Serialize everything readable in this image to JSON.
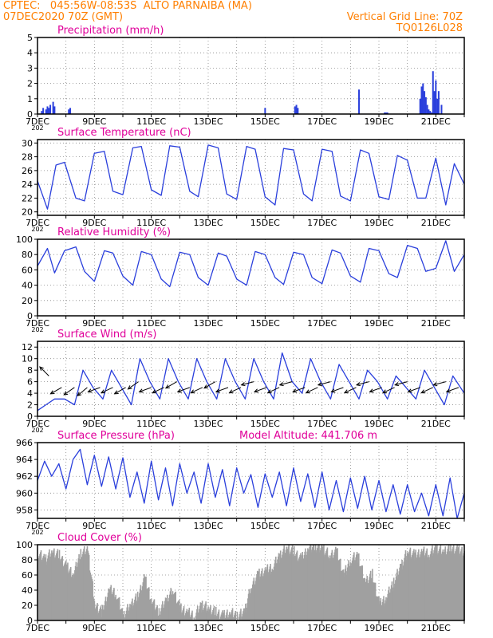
{
  "header": {
    "line1": "CPTEC:   045:56W-08:53S  ALTO PARNAIBA (MA)",
    "line2": "07DEC2020 70Z (GMT)",
    "grid_note": "Vertical Grid Line: 70Z",
    "code": "TQ0126L028"
  },
  "colors": {
    "header": "#ff7f00",
    "title": "#e0009a",
    "line": "#2a3fdc",
    "cloud": "#a0a0a0",
    "frame": "#000000",
    "grid": "#888888"
  },
  "chart_data": [
    {
      "type": "bar",
      "id": "precip",
      "title": "Precipitation (mm/h)",
      "title_extra": "",
      "ylim": [
        0,
        5
      ],
      "yticks": [
        0,
        1,
        2,
        3,
        4,
        5
      ],
      "ytick_labels": [
        "0",
        "1",
        "2",
        "3",
        "4",
        "5"
      ],
      "xlim": [
        7,
        22
      ],
      "xticks": [
        "7DEC",
        "9DEC",
        "11DEC",
        "13DEC",
        "15DEC",
        "17DEC",
        "19DEC",
        "21DEC"
      ],
      "x_below_first": "202",
      "x": [
        7.15,
        7.2,
        7.3,
        7.35,
        7.4,
        7.45,
        7.55,
        7.6,
        8.1,
        8.15,
        15.0,
        16.05,
        16.1,
        16.15,
        18.3,
        19.2,
        19.25,
        19.3,
        20.45,
        20.5,
        20.55,
        20.6,
        20.65,
        20.7,
        20.75,
        20.8,
        20.85,
        20.9,
        20.95,
        21.0,
        21.05,
        21.1,
        21.2
      ],
      "values": [
        0.2,
        0.4,
        0.3,
        0.5,
        0.4,
        0.6,
        0.8,
        0.5,
        0.3,
        0.4,
        0.4,
        0.5,
        0.6,
        0.4,
        1.6,
        0.1,
        0.1,
        0.1,
        1.0,
        1.8,
        2.0,
        1.5,
        1.1,
        0.6,
        0.3,
        0.2,
        0.1,
        2.8,
        1.5,
        2.2,
        1.0,
        1.5,
        0.6
      ]
    },
    {
      "type": "line",
      "id": "temp",
      "title": "Surface Temperature (nC)",
      "title_extra": "",
      "ylim": [
        19.5,
        30.5
      ],
      "yticks": [
        20,
        22,
        24,
        26,
        28,
        30
      ],
      "ytick_labels": [
        "20",
        "22",
        "24",
        "26",
        "28",
        "30"
      ],
      "xlim": [
        7,
        22
      ],
      "xticks": [
        "7DEC",
        "9DEC",
        "11DEC",
        "13DEC",
        "15DEC",
        "17DEC",
        "19DEC",
        "21DEC"
      ],
      "x_below_first": "202",
      "series": [
        {
          "x": [
            7,
            7.35,
            7.65,
            7.95,
            8.35,
            8.65,
            9.0,
            9.35,
            9.65,
            10.0,
            10.35,
            10.65,
            11.0,
            11.35,
            11.65,
            12.0,
            12.35,
            12.65,
            13.0,
            13.35,
            13.65,
            14.0,
            14.35,
            14.65,
            15.0,
            15.35,
            15.65,
            16.0,
            16.35,
            16.65,
            17.0,
            17.35,
            17.65,
            18.0,
            18.35,
            18.65,
            19.0,
            19.35,
            19.65,
            20.0,
            20.35,
            20.65,
            21.0,
            21.35,
            21.65,
            22.0
          ],
          "values": [
            24.5,
            20.4,
            26.8,
            27.2,
            22.0,
            21.6,
            28.5,
            28.8,
            23.0,
            22.5,
            29.3,
            29.5,
            23.2,
            22.4,
            29.6,
            29.4,
            23.0,
            22.2,
            29.7,
            29.3,
            22.6,
            21.8,
            29.5,
            29.1,
            22.2,
            21.0,
            29.2,
            29.0,
            22.6,
            21.6,
            29.1,
            28.8,
            22.3,
            21.6,
            29.0,
            28.5,
            22.2,
            21.8,
            28.2,
            27.5,
            22.0,
            22.0,
            27.8,
            21.0,
            27.0,
            24.0
          ]
        }
      ]
    },
    {
      "type": "line",
      "id": "rh",
      "title": "Relative Humidity (%)",
      "title_extra": "",
      "ylim": [
        0,
        100
      ],
      "yticks": [
        0,
        20,
        40,
        60,
        80,
        100
      ],
      "ytick_labels": [
        "0",
        "20",
        "40",
        "60",
        "80",
        "100"
      ],
      "xlim": [
        7,
        22
      ],
      "xticks": [
        "7DEC",
        "9DEC",
        "11DEC",
        "13DEC",
        "15DEC",
        "17DEC",
        "19DEC",
        "21DEC"
      ],
      "x_below_first": "202",
      "series": [
        {
          "x": [
            7,
            7.35,
            7.6,
            7.95,
            8.35,
            8.65,
            9.0,
            9.35,
            9.65,
            10.0,
            10.35,
            10.65,
            11.0,
            11.35,
            11.65,
            12.0,
            12.35,
            12.65,
            13.0,
            13.35,
            13.65,
            14.0,
            14.35,
            14.65,
            15.0,
            15.35,
            15.65,
            16.0,
            16.35,
            16.65,
            17.0,
            17.35,
            17.65,
            18.0,
            18.35,
            18.65,
            19.0,
            19.35,
            19.65,
            20.0,
            20.35,
            20.65,
            21.0,
            21.35,
            21.65,
            22.0
          ],
          "values": [
            65,
            88,
            56,
            85,
            90,
            58,
            45,
            85,
            82,
            52,
            40,
            84,
            80,
            48,
            38,
            83,
            80,
            50,
            40,
            82,
            78,
            48,
            40,
            84,
            80,
            50,
            41,
            83,
            80,
            50,
            42,
            86,
            82,
            52,
            44,
            88,
            85,
            55,
            50,
            92,
            88,
            58,
            62,
            98,
            58,
            80
          ]
        }
      ]
    },
    {
      "type": "line",
      "id": "wind",
      "title": "Surface Wind (m/s)",
      "title_extra": "",
      "ylim": [
        0,
        13
      ],
      "yticks": [
        0,
        2,
        4,
        6,
        8,
        10,
        12
      ],
      "ytick_labels": [
        "0",
        "2",
        "4",
        "6",
        "8",
        "10",
        "12"
      ],
      "xlim": [
        7,
        22
      ],
      "xticks": [
        "7DEC",
        "9DEC",
        "11DEC",
        "13DEC",
        "15DEC",
        "17DEC",
        "19DEC",
        "21DEC"
      ],
      "x_below_first": "202",
      "series": [
        {
          "x": [
            7,
            7.3,
            7.6,
            7.95,
            8.3,
            8.6,
            8.95,
            9.3,
            9.6,
            9.95,
            10.3,
            10.6,
            10.95,
            11.3,
            11.6,
            11.95,
            12.3,
            12.6,
            12.95,
            13.3,
            13.6,
            13.95,
            14.3,
            14.6,
            14.95,
            15.3,
            15.6,
            15.95,
            16.3,
            16.6,
            16.95,
            17.3,
            17.6,
            17.95,
            18.3,
            18.6,
            18.95,
            19.3,
            19.6,
            19.95,
            20.3,
            20.6,
            20.95,
            21.3,
            21.6,
            22.0
          ],
          "values": [
            1,
            2,
            3,
            3,
            2,
            8,
            5,
            3,
            8,
            5,
            2,
            10,
            6,
            3,
            10,
            6,
            3,
            10,
            6,
            3,
            10,
            6,
            3,
            10,
            6,
            3,
            11,
            6,
            4,
            10,
            6,
            3,
            9,
            6,
            3,
            8,
            6,
            3,
            7,
            5,
            3,
            8,
            5,
            2,
            7,
            4
          ]
        }
      ],
      "arrows": {
        "x": [
          7.4,
          7.85,
          8.3,
          8.75,
          9.2,
          9.65,
          10.1,
          10.55,
          11.0,
          11.45,
          11.9,
          12.35,
          12.8,
          13.25,
          13.7,
          14.15,
          14.6,
          15.05,
          15.5,
          15.95,
          16.4,
          16.85,
          17.3,
          17.75,
          18.2,
          18.65,
          19.1,
          19.55,
          20.0,
          20.45,
          20.9,
          21.35,
          21.8
        ],
        "y": [
          7,
          5,
          5,
          5,
          5,
          5,
          5,
          6,
          5,
          5,
          6,
          5,
          5,
          6,
          5,
          5,
          6,
          5,
          5,
          6,
          5,
          5,
          6,
          5,
          5,
          6,
          5,
          5,
          6,
          5,
          5,
          6,
          5
        ],
        "direction_deg": [
          135,
          210,
          215,
          220,
          200,
          205,
          210,
          215,
          200,
          205,
          210,
          200,
          205,
          210,
          200,
          205,
          195,
          200,
          205,
          195,
          200,
          205,
          195,
          200,
          205,
          195,
          200,
          205,
          195,
          200,
          205,
          195,
          200
        ]
      }
    },
    {
      "type": "line",
      "id": "press",
      "title": "Surface Pressure (hPa)",
      "title_extra": "Model Altitude: 441.706 m",
      "ylim": [
        957,
        966
      ],
      "yticks": [
        958,
        960,
        962,
        964,
        966
      ],
      "ytick_labels": [
        "958",
        "960",
        "962",
        "964",
        "966"
      ],
      "xlim": [
        7,
        22
      ],
      "xticks": [
        "7DEC",
        "9DEC",
        "11DEC",
        "13DEC",
        "15DEC",
        "17DEC",
        "19DEC",
        "21DEC"
      ],
      "x_below_first": "202",
      "series": [
        {
          "x": [
            7,
            7.25,
            7.5,
            7.75,
            8.0,
            8.25,
            8.5,
            8.75,
            9.0,
            9.25,
            9.5,
            9.75,
            10.0,
            10.25,
            10.5,
            10.75,
            11.0,
            11.25,
            11.5,
            11.75,
            12.0,
            12.25,
            12.5,
            12.75,
            13.0,
            13.25,
            13.5,
            13.75,
            14.0,
            14.25,
            14.5,
            14.75,
            15.0,
            15.25,
            15.5,
            15.75,
            16.0,
            16.25,
            16.5,
            16.75,
            17.0,
            17.25,
            17.5,
            17.75,
            18.0,
            18.25,
            18.5,
            18.75,
            19.0,
            19.25,
            19.5,
            19.75,
            20.0,
            20.25,
            20.5,
            20.75,
            21.0,
            21.25,
            21.5,
            21.75,
            22.0
          ],
          "values": [
            961.5,
            963.8,
            962.0,
            963.5,
            960.5,
            964.0,
            965.2,
            961.0,
            964.5,
            960.8,
            964.3,
            960.5,
            964.2,
            959.5,
            962.5,
            958.8,
            963.8,
            959.2,
            963.0,
            958.5,
            963.5,
            960.0,
            962.5,
            958.8,
            963.5,
            959.5,
            962.8,
            958.5,
            963.0,
            960.0,
            962.2,
            958.3,
            962.3,
            959.5,
            962.5,
            958.5,
            963.0,
            959.0,
            962.3,
            958.3,
            962.5,
            958.0,
            961.5,
            957.8,
            961.8,
            958.2,
            962.0,
            958.0,
            961.5,
            957.8,
            961.0,
            957.5,
            961.0,
            957.8,
            960.0,
            957.3,
            961.0,
            957.3,
            961.8,
            957.0,
            960.0
          ]
        }
      ]
    },
    {
      "type": "area",
      "id": "cloud",
      "title": "Cloud Cover (%)",
      "title_extra": "",
      "ylim": [
        0,
        100
      ],
      "yticks": [
        0,
        20,
        40,
        60,
        80,
        100
      ],
      "ytick_labels": [
        "0",
        "20",
        "40",
        "60",
        "80",
        "100"
      ],
      "xlim": [
        7,
        22
      ],
      "xticks": [
        "7DEC",
        "9DEC",
        "11DEC",
        "13DEC",
        "15DEC",
        "17DEC",
        "19DEC",
        "21DEC"
      ],
      "x_below_first": "",
      "series": [
        {
          "x": [
            7,
            7.25,
            7.5,
            7.75,
            8.0,
            8.25,
            8.5,
            8.75,
            9.0,
            9.25,
            9.5,
            9.75,
            10.0,
            10.25,
            10.5,
            10.75,
            11.0,
            11.25,
            11.5,
            11.75,
            12.0,
            12.25,
            12.5,
            12.75,
            13.0,
            13.25,
            13.5,
            13.75,
            14.0,
            14.25,
            14.5,
            14.75,
            15.0,
            15.25,
            15.5,
            15.75,
            16.0,
            16.25,
            16.5,
            16.75,
            17.0,
            17.25,
            17.5,
            17.75,
            18.0,
            18.25,
            18.5,
            18.75,
            19.0,
            19.25,
            19.5,
            19.75,
            20.0,
            20.25,
            20.5,
            20.75,
            21.0,
            21.25,
            21.5,
            21.75,
            22.0
          ],
          "values": [
            88,
            80,
            90,
            85,
            70,
            60,
            88,
            92,
            20,
            10,
            40,
            35,
            5,
            20,
            30,
            55,
            25,
            10,
            25,
            40,
            15,
            10,
            5,
            20,
            15,
            10,
            5,
            10,
            5,
            10,
            45,
            60,
            65,
            70,
            85,
            95,
            90,
            80,
            95,
            98,
            95,
            85,
            90,
            60,
            80,
            85,
            50,
            60,
            20,
            30,
            50,
            70,
            92,
            85,
            90,
            88,
            95,
            90,
            95,
            92,
            90
          ]
        }
      ]
    }
  ]
}
